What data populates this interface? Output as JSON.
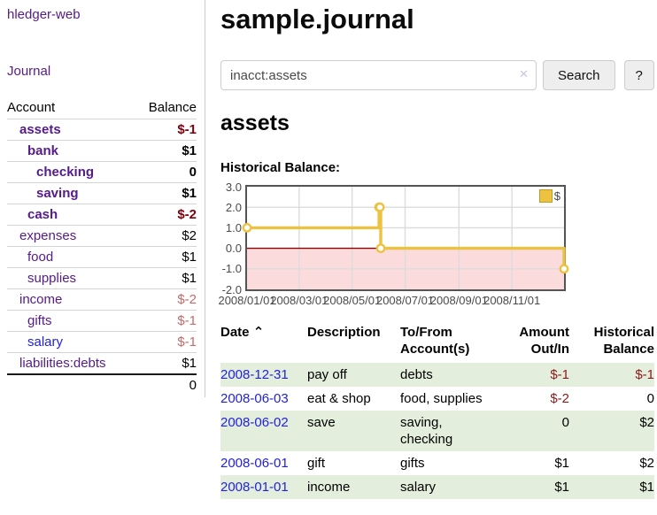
{
  "app": {
    "title": "hledger-web"
  },
  "sidebar": {
    "journal_label": "Journal",
    "account_header": "Account",
    "balance_header": "Balance",
    "accounts": [
      {
        "name": "assets",
        "indent": 1,
        "bold": true,
        "balance": "$-1",
        "balance_style": "neg-strong",
        "link_style": "purple"
      },
      {
        "name": "bank",
        "indent": 2,
        "bold": true,
        "balance": "$1",
        "balance_style": "normal",
        "link_style": "purple"
      },
      {
        "name": "checking",
        "indent": 3,
        "bold": true,
        "balance": "0",
        "balance_style": "normal",
        "link_style": "purple"
      },
      {
        "name": "saving",
        "indent": 3,
        "bold": true,
        "balance": "$1",
        "balance_style": "normal",
        "link_style": "purple"
      },
      {
        "name": "cash",
        "indent": 2,
        "bold": true,
        "balance": "$-2",
        "balance_style": "neg-strong",
        "link_style": "purple"
      },
      {
        "name": "expenses",
        "indent": 1,
        "bold": false,
        "balance": "$2",
        "balance_style": "normal",
        "link_style": "purple"
      },
      {
        "name": "food",
        "indent": 2,
        "bold": false,
        "balance": "$1",
        "balance_style": "normal",
        "link_style": "purple"
      },
      {
        "name": "supplies",
        "indent": 2,
        "bold": false,
        "balance": "$1",
        "balance_style": "normal",
        "link_style": "purple"
      },
      {
        "name": "income",
        "indent": 1,
        "bold": false,
        "balance": "$-2",
        "balance_style": "neg-soft",
        "link_style": "purple"
      },
      {
        "name": "gifts",
        "indent": 2,
        "bold": false,
        "balance": "$-1",
        "balance_style": "neg-soft",
        "link_style": "purple"
      },
      {
        "name": "salary",
        "indent": 2,
        "bold": false,
        "balance": "$-1",
        "balance_style": "neg-soft",
        "link_style": "blue"
      },
      {
        "name": "liabilities:debts",
        "indent": 1,
        "bold": false,
        "balance": "$1",
        "balance_style": "normal",
        "link_style": "purple"
      }
    ],
    "total": "0"
  },
  "header": {
    "title": "sample.journal"
  },
  "search": {
    "value": "inacct:assets",
    "clear_icon": "✕",
    "button_label": "Search",
    "help_label": "?"
  },
  "register": {
    "heading": "assets",
    "chart_heading": "Historical Balance:"
  },
  "chart_data": {
    "type": "line",
    "title": "Historical Balance:",
    "series": [
      {
        "name": "$",
        "color": "#edc240",
        "step": true,
        "points": [
          {
            "x": "2008-01-01",
            "y": 1
          },
          {
            "x": "2008-06-01",
            "y": 2
          },
          {
            "x": "2008-06-02",
            "y": 2
          },
          {
            "x": "2008-06-03",
            "y": 0
          },
          {
            "x": "2008-12-31",
            "y": -1
          }
        ]
      }
    ],
    "xlim": [
      "2008-01-01",
      "2008-12-31"
    ],
    "ylim": [
      -2,
      3
    ],
    "ytick_labels": [
      "3.0",
      "2.0",
      "1.0",
      "0.0",
      "-1.0",
      "-2.0"
    ],
    "yticks": [
      3,
      2,
      1,
      0,
      -1,
      -2
    ],
    "xticks": [
      {
        "x": "2008-01-01",
        "label": "2008/01/01"
      },
      {
        "x": "2008-03-01",
        "label": "2008/03/01"
      },
      {
        "x": "2008-05-01",
        "label": "2008/05/01"
      },
      {
        "x": "2008-07-01",
        "label": "2008/07/01"
      },
      {
        "x": "2008-09-01",
        "label": "2008/09/01"
      },
      {
        "x": "2008-11-01",
        "label": "2008/11/01"
      }
    ],
    "legend": {
      "label": "$",
      "position": "top-right"
    },
    "grid": true,
    "grid_color": "#dcdcdc",
    "negative_region_fill": "#fbdbdb",
    "zero_line_color": "#8b0000",
    "border_color": "#545454"
  },
  "transactions": {
    "headers": {
      "date": "Date",
      "sort_icon": "⌃",
      "description": "Description",
      "accounts": "To/From Account(s)",
      "amount": "Amount Out/In",
      "balance": "Historical Balance"
    },
    "rows": [
      {
        "date": "2008-12-31",
        "description": "pay off",
        "accounts": "debts",
        "amount": "$-1",
        "amount_negative": true,
        "balance": "$-1",
        "balance_negative": true,
        "shade": "green"
      },
      {
        "date": "2008-06-03",
        "description": "eat & shop",
        "accounts": "food, supplies",
        "amount": "$-2",
        "amount_negative": true,
        "balance": "0",
        "balance_negative": false,
        "shade": "white"
      },
      {
        "date": "2008-06-02",
        "description": "save",
        "accounts": "saving, checking",
        "amount": "0",
        "amount_negative": false,
        "balance": "$2",
        "balance_negative": false,
        "shade": "green"
      },
      {
        "date": "2008-06-01",
        "description": "gift",
        "accounts": "gifts",
        "amount": "$1",
        "amount_negative": false,
        "balance": "$2",
        "balance_negative": false,
        "shade": "white"
      },
      {
        "date": "2008-01-01",
        "description": "income",
        "accounts": "salary",
        "amount": "$1",
        "amount_negative": false,
        "balance": "$1",
        "balance_negative": false,
        "shade": "green"
      }
    ]
  },
  "colors": {
    "link_purple": "#551a8b",
    "link_blue": "#2222dd",
    "negative_strong": "#7e000c",
    "negative_soft": "#c46a6a",
    "negative_table": "#8b1a1a",
    "row_green": "#e3efdc",
    "series_gold": "#edc240"
  }
}
